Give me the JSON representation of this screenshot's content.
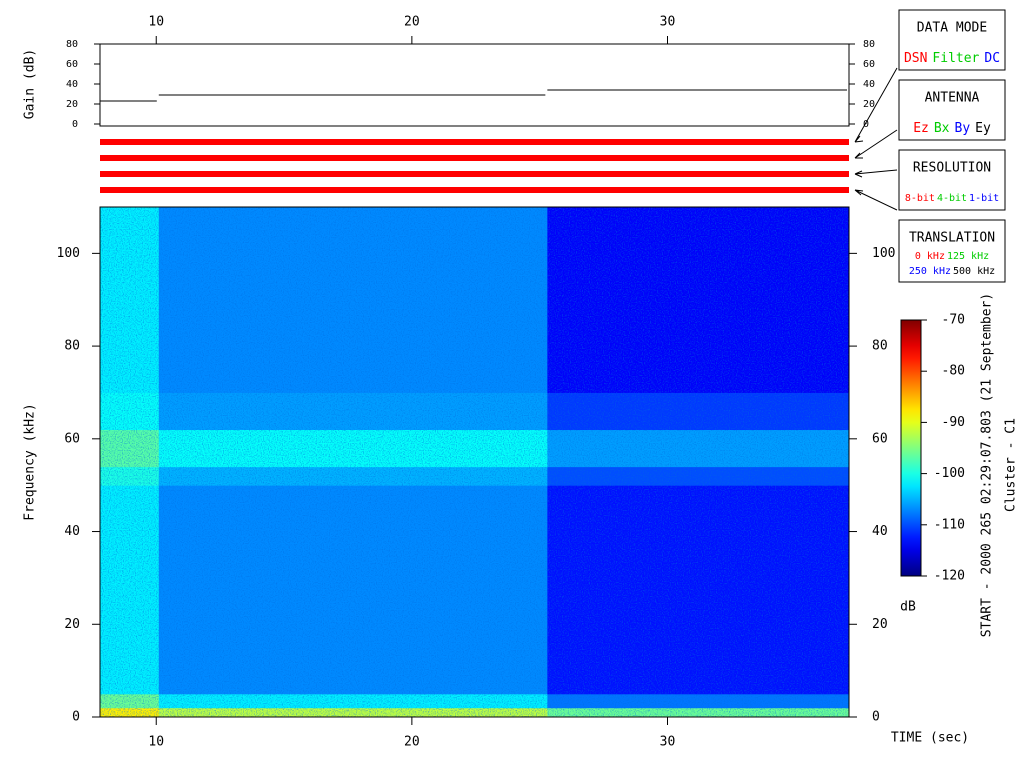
{
  "chart_data": [
    {
      "type": "line",
      "ylabel": "Gain (dB)",
      "xlim": [
        7.8,
        37.1
      ],
      "xticks": [
        10,
        20,
        30
      ],
      "ylim": [
        0,
        80
      ],
      "yticks": [
        0,
        20,
        40,
        60,
        80
      ],
      "step": true,
      "series": [
        {
          "color": "#000000",
          "x": [
            7.8,
            10.1,
            25.3
          ],
          "values": [
            23,
            29,
            34
          ]
        }
      ]
    },
    {
      "type": "heatmap",
      "xlabel": "TIME (sec)",
      "ylabel": "Frequency (kHz)",
      "xlim": [
        7.8,
        37.1
      ],
      "xticks": [
        10,
        20,
        30
      ],
      "ylim": [
        0,
        110
      ],
      "yticks": [
        0,
        20,
        40,
        60,
        80,
        100
      ],
      "x_bins": [
        7.8,
        10.1,
        25.3,
        37.1
      ],
      "y_bins": [
        0,
        2,
        5,
        50,
        54,
        62,
        70,
        110
      ],
      "values": [
        [
          -88,
          -92,
          -96
        ],
        [
          -96,
          -102,
          -108
        ],
        [
          -102,
          -107,
          -113
        ],
        [
          -100,
          -105,
          -110
        ],
        [
          -97,
          -101,
          -106
        ],
        [
          -101,
          -106,
          -111
        ],
        [
          -102,
          -107,
          -114
        ]
      ],
      "colorbar": {
        "colormap": "jet",
        "clim": [
          -120,
          -70
        ],
        "ticks": [
          -70,
          -80,
          -90,
          -100,
          -110,
          -120
        ],
        "label": "dB"
      }
    }
  ],
  "legend_boxes": [
    {
      "title": "DATA MODE",
      "rows": [
        [
          {
            "label": "DSN",
            "color": "#ff0000"
          },
          {
            "label": "Filter",
            "color": "#00cc00"
          },
          {
            "label": "DC",
            "color": "#0000ff"
          }
        ]
      ]
    },
    {
      "title": "ANTENNA",
      "rows": [
        [
          {
            "label": "Ez",
            "color": "#ff0000"
          },
          {
            "label": "Bx",
            "color": "#00cc00"
          },
          {
            "label": "By",
            "color": "#0000ff"
          },
          {
            "label": "Ey",
            "color": "#000000"
          }
        ]
      ]
    },
    {
      "title": "RESOLUTION",
      "rows": [
        [
          {
            "label": "8-bit",
            "color": "#ff0000"
          },
          {
            "label": "4-bit",
            "color": "#00cc00"
          },
          {
            "label": "1-bit",
            "color": "#0000ff"
          }
        ]
      ]
    },
    {
      "title": "TRANSLATION",
      "rows": [
        [
          {
            "label": "0 kHz",
            "color": "#ff0000"
          },
          {
            "label": "125 kHz",
            "color": "#00cc00"
          }
        ],
        [
          {
            "label": "250 kHz",
            "color": "#0000ff"
          },
          {
            "label": "500 kHz",
            "color": "#000000"
          }
        ]
      ]
    }
  ],
  "info": [
    "START - 2000 265 02:29:07.803 (21 September)",
    "Cluster - C1"
  ]
}
